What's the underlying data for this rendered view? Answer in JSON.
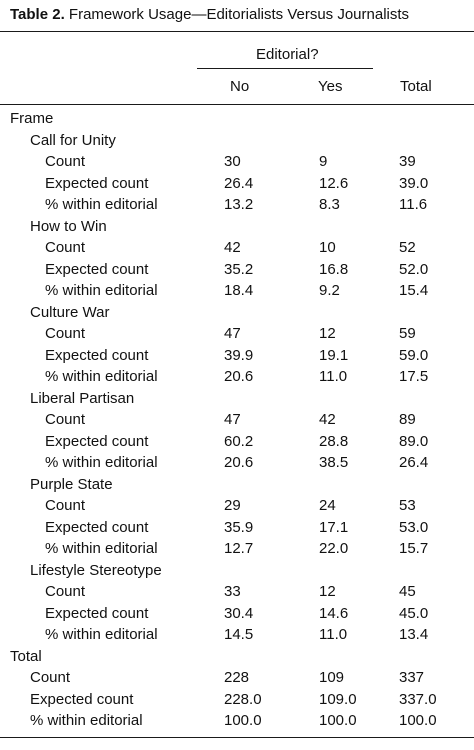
{
  "caption": {
    "label": "Table 2.",
    "title": "Framework Usage—Editorialists Versus Journalists"
  },
  "header": {
    "group": "Editorial?",
    "no": "No",
    "yes": "Yes",
    "total": "Total"
  },
  "frame_label": "Frame",
  "frames": [
    {
      "name": "Call for Unity",
      "rows": [
        {
          "label": "Count",
          "no": "30",
          "yes": "9",
          "total": "39"
        },
        {
          "label": "Expected count",
          "no": "26.4",
          "yes": "12.6",
          "total": "39.0"
        },
        {
          "label": "% within editorial",
          "no": "13.2",
          "yes": "8.3",
          "total": "11.6"
        }
      ]
    },
    {
      "name": "How to Win",
      "rows": [
        {
          "label": "Count",
          "no": "42",
          "yes": "10",
          "total": "52"
        },
        {
          "label": "Expected count",
          "no": "35.2",
          "yes": "16.8",
          "total": "52.0"
        },
        {
          "label": "% within editorial",
          "no": "18.4",
          "yes": "9.2",
          "total": "15.4"
        }
      ]
    },
    {
      "name": "Culture War",
      "rows": [
        {
          "label": "Count",
          "no": "47",
          "yes": "12",
          "total": "59"
        },
        {
          "label": "Expected count",
          "no": "39.9",
          "yes": "19.1",
          "total": "59.0"
        },
        {
          "label": "% within editorial",
          "no": "20.6",
          "yes": "11.0",
          "total": "17.5"
        }
      ]
    },
    {
      "name": "Liberal Partisan",
      "rows": [
        {
          "label": "Count",
          "no": "47",
          "yes": "42",
          "total": "89"
        },
        {
          "label": "Expected count",
          "no": "60.2",
          "yes": "28.8",
          "total": "89.0"
        },
        {
          "label": "% within editorial",
          "no": "20.6",
          "yes": "38.5",
          "total": "26.4"
        }
      ]
    },
    {
      "name": "Purple State",
      "rows": [
        {
          "label": "Count",
          "no": "29",
          "yes": "24",
          "total": "53"
        },
        {
          "label": "Expected count",
          "no": "35.9",
          "yes": "17.1",
          "total": "53.0"
        },
        {
          "label": "% within editorial",
          "no": "12.7",
          "yes": "22.0",
          "total": "15.7"
        }
      ]
    },
    {
      "name": "Lifestyle Stereotype",
      "rows": [
        {
          "label": "Count",
          "no": "33",
          "yes": "12",
          "total": "45"
        },
        {
          "label": "Expected count",
          "no": "30.4",
          "yes": "14.6",
          "total": "45.0"
        },
        {
          "label": "% within editorial",
          "no": "14.5",
          "yes": "11.0",
          "total": "13.4"
        }
      ]
    }
  ],
  "total": {
    "label": "Total",
    "rows": [
      {
        "label": "Count",
        "no": "228",
        "yes": "109",
        "total": "337"
      },
      {
        "label": "Expected count",
        "no": "228.0",
        "yes": "109.0",
        "total": "337.0"
      },
      {
        "label": "% within editorial",
        "no": "100.0",
        "yes": "100.0",
        "total": "100.0"
      }
    ]
  }
}
